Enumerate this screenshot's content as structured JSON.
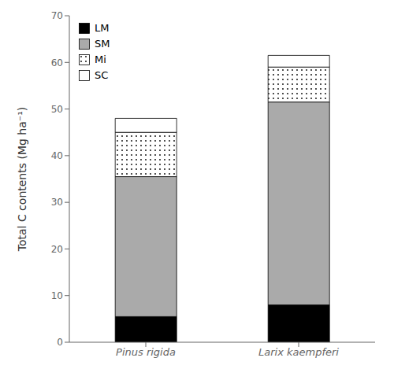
{
  "chart_data": {
    "type": "bar",
    "stacked": true,
    "categories": [
      "Pinus rigida",
      "Larix kaempferi"
    ],
    "series": [
      {
        "name": "LM",
        "color": "#000000",
        "values": [
          5.5,
          8.0
        ]
      },
      {
        "name": "SM",
        "color": "#aaaaaa",
        "values": [
          30.0,
          43.5
        ]
      },
      {
        "name": "Mi",
        "color": "#ffffff",
        "values": [
          9.5,
          7.5
        ]
      },
      {
        "name": "SC",
        "color": "#ffffff",
        "values": [
          3.0,
          2.5
        ]
      }
    ],
    "ylabel": "Total C contents (Mg ha⁻¹)",
    "ylim": [
      0,
      70
    ],
    "yticks": [
      0,
      10,
      20,
      30,
      40,
      50,
      60,
      70
    ],
    "legend": "upper left",
    "grid": false
  }
}
